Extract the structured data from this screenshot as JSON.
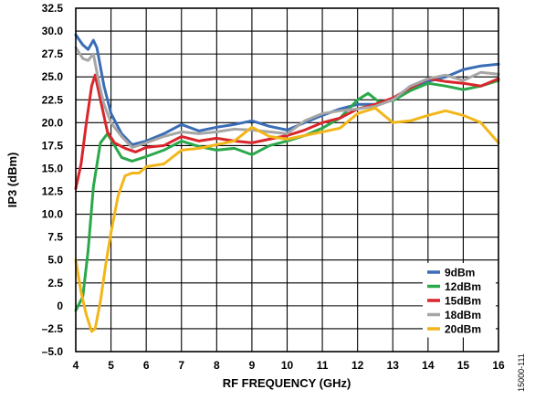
{
  "figure_id": "15000-111",
  "chart_data": {
    "type": "line",
    "xlabel": "RF FREQUENCY (GHz)",
    "ylabel": "IP3 (dBm)",
    "xlim": [
      4,
      16
    ],
    "ylim": [
      -5,
      32.5
    ],
    "xticks": [
      4,
      5,
      6,
      7,
      8,
      9,
      10,
      11,
      12,
      13,
      14,
      15,
      16
    ],
    "xtick_labels": [
      "4",
      "5",
      "6",
      "7",
      "8",
      "9",
      "10",
      "11",
      "12",
      "13",
      "14",
      "15",
      "16"
    ],
    "yticks": [
      -5,
      -2.5,
      0,
      2.5,
      5,
      7.5,
      10,
      12.5,
      15,
      17.5,
      20,
      22.5,
      25,
      27.5,
      30,
      32.5
    ],
    "ytick_labels": [
      "–5.0",
      "–2.5",
      "0",
      "2.5",
      "5.0",
      "7.5",
      "10.0",
      "12.5",
      "15.0",
      "17.5",
      "20.0",
      "22.5",
      "25.0",
      "27.5",
      "30.0",
      "32.5"
    ],
    "grid": true,
    "legend_position": "bottom-right",
    "series": [
      {
        "name": "9dBm",
        "color": "#3a6db5",
        "x": [
          4.0,
          4.2,
          4.35,
          4.5,
          4.6,
          4.8,
          5.0,
          5.3,
          5.6,
          6.0,
          6.5,
          7.0,
          7.5,
          8.0,
          8.5,
          9.0,
          9.5,
          10.0,
          10.5,
          11.0,
          11.5,
          12.0,
          12.5,
          13.0,
          13.5,
          14.0,
          14.5,
          15.0,
          15.5,
          16.0
        ],
        "y": [
          29.6,
          28.5,
          28.0,
          29.0,
          28.2,
          24.0,
          21.0,
          18.8,
          17.6,
          18.0,
          18.8,
          19.8,
          19.1,
          19.5,
          19.8,
          20.2,
          19.6,
          19.2,
          20.0,
          20.8,
          21.5,
          22.0,
          22.0,
          22.5,
          23.5,
          24.5,
          25.0,
          25.8,
          26.2,
          26.4
        ]
      },
      {
        "name": "12dBm",
        "color": "#2aa84a",
        "x": [
          4.0,
          4.2,
          4.35,
          4.5,
          4.7,
          4.9,
          5.1,
          5.3,
          5.6,
          6.0,
          6.5,
          7.0,
          7.5,
          8.0,
          8.5,
          9.0,
          9.5,
          10.0,
          10.5,
          11.0,
          11.5,
          12.0,
          12.3,
          12.6,
          13.0,
          13.5,
          14.0,
          14.5,
          15.0,
          15.5,
          16.0
        ],
        "y": [
          -0.5,
          1.0,
          6.0,
          13.0,
          17.8,
          18.8,
          17.5,
          16.2,
          15.8,
          16.3,
          17.0,
          18.0,
          17.4,
          17.0,
          17.2,
          16.5,
          17.5,
          18.0,
          18.6,
          19.4,
          20.5,
          22.5,
          23.2,
          22.3,
          22.4,
          23.5,
          24.3,
          24.0,
          23.6,
          24.0,
          24.6
        ]
      },
      {
        "name": "15dBm",
        "color": "#d9262c",
        "x": [
          4.0,
          4.15,
          4.3,
          4.45,
          4.55,
          4.7,
          4.9,
          5.1,
          5.4,
          5.7,
          6.0,
          6.5,
          7.0,
          7.5,
          8.0,
          8.5,
          9.0,
          9.5,
          10.0,
          10.5,
          11.0,
          11.5,
          12.0,
          12.5,
          13.0,
          13.5,
          14.0,
          14.5,
          15.0,
          15.5,
          16.0
        ],
        "y": [
          12.8,
          15.5,
          20.0,
          24.0,
          25.2,
          22.5,
          19.0,
          17.8,
          17.2,
          16.8,
          17.3,
          17.5,
          18.5,
          18.0,
          18.3,
          18.0,
          17.8,
          18.2,
          18.6,
          19.2,
          20.0,
          20.5,
          21.5,
          22.0,
          22.7,
          23.8,
          24.8,
          24.5,
          24.3,
          24.0,
          24.8
        ]
      },
      {
        "name": "18dBm",
        "color": "#a6a6a6",
        "x": [
          4.0,
          4.2,
          4.35,
          4.5,
          4.65,
          4.8,
          5.0,
          5.3,
          5.6,
          6.0,
          6.5,
          7.0,
          7.5,
          8.0,
          8.5,
          9.0,
          9.5,
          10.0,
          10.5,
          11.0,
          11.5,
          12.0,
          12.5,
          13.0,
          13.5,
          14.0,
          14.5,
          15.0,
          15.5,
          16.0
        ],
        "y": [
          28.2,
          27.0,
          26.8,
          27.5,
          24.5,
          22.0,
          20.0,
          18.5,
          17.3,
          17.8,
          18.5,
          19.0,
          18.8,
          19.0,
          19.3,
          19.2,
          19.0,
          18.8,
          20.2,
          21.0,
          21.3,
          21.5,
          21.8,
          22.5,
          24.0,
          24.8,
          25.2,
          24.6,
          25.5,
          25.3
        ]
      },
      {
        "name": "20dBm",
        "color": "#f2b619",
        "x": [
          4.0,
          4.15,
          4.3,
          4.45,
          4.55,
          4.7,
          4.85,
          5.0,
          5.2,
          5.4,
          5.6,
          5.8,
          6.0,
          6.5,
          7.0,
          7.5,
          8.0,
          8.5,
          9.0,
          9.5,
          10.0,
          10.5,
          11.0,
          11.5,
          12.0,
          12.5,
          13.0,
          13.5,
          14.0,
          14.5,
          15.0,
          15.5,
          16.0
        ],
        "y": [
          5.0,
          1.5,
          -1.0,
          -2.8,
          -2.5,
          0.5,
          4.5,
          8.0,
          12.0,
          14.2,
          14.5,
          14.5,
          15.2,
          15.5,
          17.0,
          17.2,
          17.6,
          18.0,
          19.5,
          18.5,
          18.2,
          18.6,
          19.0,
          19.4,
          21.0,
          21.6,
          20.0,
          20.2,
          20.8,
          21.3,
          20.8,
          20.0,
          17.8
        ]
      }
    ]
  }
}
